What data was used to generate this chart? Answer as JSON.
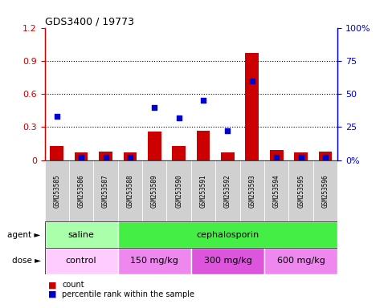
{
  "title": "GDS3400 / 19773",
  "samples": [
    "GSM253585",
    "GSM253586",
    "GSM253587",
    "GSM253588",
    "GSM253589",
    "GSM253590",
    "GSM253591",
    "GSM253592",
    "GSM253593",
    "GSM253594",
    "GSM253595",
    "GSM253596"
  ],
  "red_bars": [
    0.13,
    0.07,
    0.08,
    0.07,
    0.26,
    0.13,
    0.27,
    0.07,
    0.97,
    0.09,
    0.07,
    0.08
  ],
  "blue_squares": [
    33,
    2,
    2,
    2,
    40,
    32,
    45,
    22,
    60,
    2,
    2,
    2
  ],
  "ylim_left": [
    0,
    1.2
  ],
  "ylim_right": [
    0,
    100
  ],
  "yticks_left": [
    0,
    0.3,
    0.6,
    0.9,
    1.2
  ],
  "yticks_right": [
    0,
    25,
    50,
    75,
    100
  ],
  "ytick_labels_left": [
    "0",
    "0.3",
    "0.6",
    "0.9",
    "1.2"
  ],
  "ytick_labels_right": [
    "0%",
    "25",
    "50",
    "75",
    "100%"
  ],
  "agent_groups": [
    {
      "label": "saline",
      "start": 0,
      "end": 3,
      "color": "#aaffaa"
    },
    {
      "label": "cephalosporin",
      "start": 3,
      "end": 12,
      "color": "#44ee44"
    }
  ],
  "dose_groups": [
    {
      "label": "control",
      "start": 0,
      "end": 3,
      "color": "#ffccff"
    },
    {
      "label": "150 mg/kg",
      "start": 3,
      "end": 6,
      "color": "#ee88ee"
    },
    {
      "label": "300 mg/kg",
      "start": 6,
      "end": 9,
      "color": "#dd55dd"
    },
    {
      "label": "600 mg/kg",
      "start": 9,
      "end": 12,
      "color": "#ee88ee"
    }
  ],
  "red_color": "#cc0000",
  "blue_color": "#0000cc",
  "left_axis_color": "#cc0000",
  "right_axis_color": "#0000cc",
  "agent_label": "agent",
  "dose_label": "dose",
  "bar_width": 0.55,
  "sample_box_color": "#d0d0d0"
}
